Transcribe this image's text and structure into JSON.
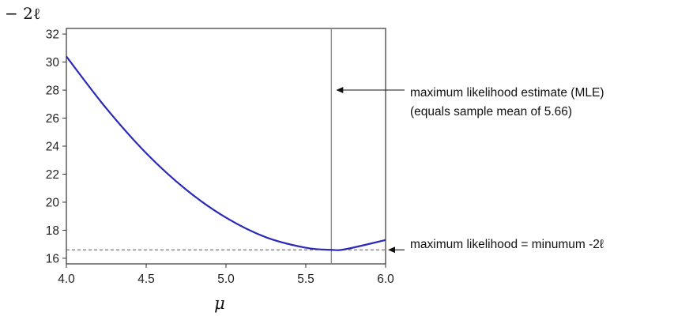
{
  "chart_data": {
    "type": "line",
    "title": "",
    "xlabel": "μ",
    "ylabel": "− 2ℓ",
    "xlim": [
      4.0,
      6.0
    ],
    "ylim": [
      15.6,
      32.4
    ],
    "x_ticks": [
      4.0,
      4.5,
      5.0,
      5.5,
      6.0
    ],
    "x_tick_labels": [
      "4.0",
      "4.5",
      "5.0",
      "5.5",
      "6.0"
    ],
    "y_ticks": [
      16,
      18,
      20,
      22,
      24,
      26,
      28,
      30,
      32
    ],
    "y_tick_labels": [
      "16",
      "18",
      "20",
      "22",
      "24",
      "26",
      "28",
      "30",
      "32"
    ],
    "grid": false,
    "series": [
      {
        "color": "#2a2ab8",
        "x": [
          4.0,
          4.25,
          4.5,
          4.75,
          5.0,
          5.25,
          5.5,
          5.66,
          5.75,
          6.0
        ],
        "y": [
          30.4,
          26.7,
          23.5,
          20.9,
          18.9,
          17.5,
          16.75,
          16.6,
          16.65,
          17.3
        ]
      }
    ],
    "mle": {
      "x": 5.66,
      "color": "#888888",
      "annotation_line1": "maximum likelihood estimate (MLE)",
      "annotation_line2": "(equals sample mean of 5.66)"
    },
    "min_level": {
      "y": 16.6,
      "color": "#555555",
      "style": "dashed",
      "annotation": "maximum likelihood = minumum -2ℓ"
    }
  }
}
